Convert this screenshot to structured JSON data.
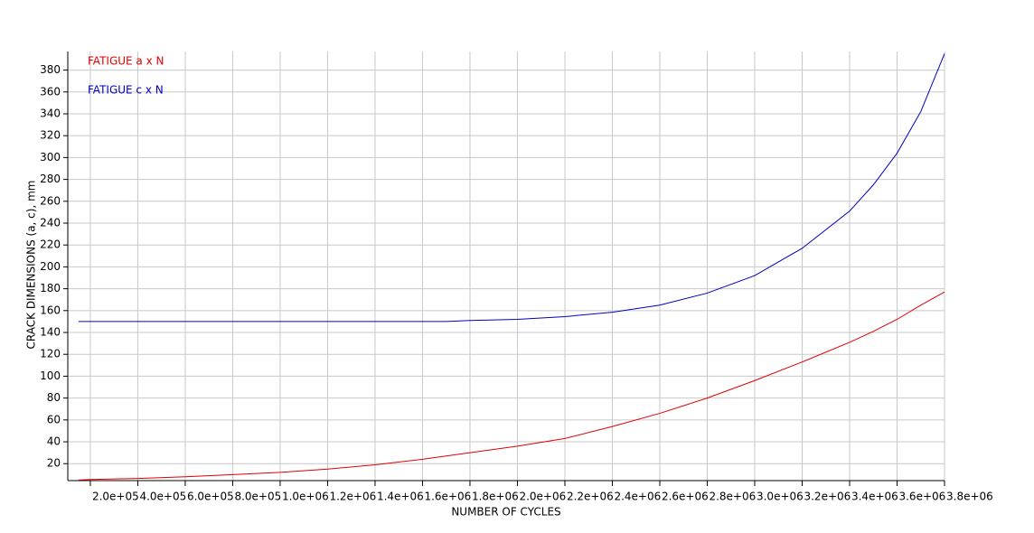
{
  "chart_data": {
    "type": "line",
    "x_label": "NUMBER OF CYCLES",
    "y_label": "CRACK DIMENSIONS (a, c), mm",
    "x": [
      150000,
      200000,
      400000,
      600000,
      800000,
      1000000,
      1200000,
      1400000,
      1600000,
      1700000,
      1800000,
      2000000,
      2200000,
      2400000,
      2600000,
      2800000,
      3000000,
      3200000,
      3400000,
      3500000,
      3600000,
      3700000,
      3800000
    ],
    "series": [
      {
        "name": "FATIGUE a x N",
        "color": "#e00000",
        "values": [
          5,
          5.5,
          6.5,
          8,
          10,
          12,
          15,
          19,
          24,
          27,
          30,
          36,
          43,
          54,
          66,
          80,
          96,
          113,
          131,
          141,
          152,
          165,
          177
        ]
      },
      {
        "name": "FATIGUE c x N",
        "color": "#0000c0",
        "values": [
          150,
          150,
          150,
          150,
          150,
          150,
          150,
          150,
          150,
          150,
          151,
          152,
          154.5,
          158.5,
          165,
          176,
          192,
          217,
          251,
          275,
          304,
          342,
          395
        ]
      }
    ],
    "xlim": [
      105000,
      3800000
    ],
    "ylim": [
      4.5,
      397
    ],
    "xticks": [
      {
        "value": 200000,
        "label": "2.0e+05"
      },
      {
        "value": 400000,
        "label": "4.0e+05"
      },
      {
        "value": 600000,
        "label": "6.0e+05"
      },
      {
        "value": 800000,
        "label": "8.0e+05"
      },
      {
        "value": 1000000,
        "label": "1.0e+06"
      },
      {
        "value": 1200000,
        "label": "1.2e+06"
      },
      {
        "value": 1400000,
        "label": "1.4e+06"
      },
      {
        "value": 1600000,
        "label": "1.6e+06"
      },
      {
        "value": 1800000,
        "label": "1.8e+06"
      },
      {
        "value": 2000000,
        "label": "2.0e+06"
      },
      {
        "value": 2200000,
        "label": "2.2e+06"
      },
      {
        "value": 2400000,
        "label": "2.4e+06"
      },
      {
        "value": 2600000,
        "label": "2.6e+06"
      },
      {
        "value": 2800000,
        "label": "2.8e+06"
      },
      {
        "value": 3000000,
        "label": "3.0e+06"
      },
      {
        "value": 3200000,
        "label": "3.2e+06"
      },
      {
        "value": 3400000,
        "label": "3.4e+06"
      },
      {
        "value": 3600000,
        "label": "3.6e+06"
      },
      {
        "value": 3800000,
        "label": "3.8e+06"
      }
    ],
    "yticks": [
      20,
      40,
      60,
      80,
      100,
      120,
      140,
      160,
      180,
      200,
      220,
      240,
      260,
      280,
      300,
      320,
      340,
      360,
      380
    ],
    "grid": true,
    "legend": "top-left"
  }
}
